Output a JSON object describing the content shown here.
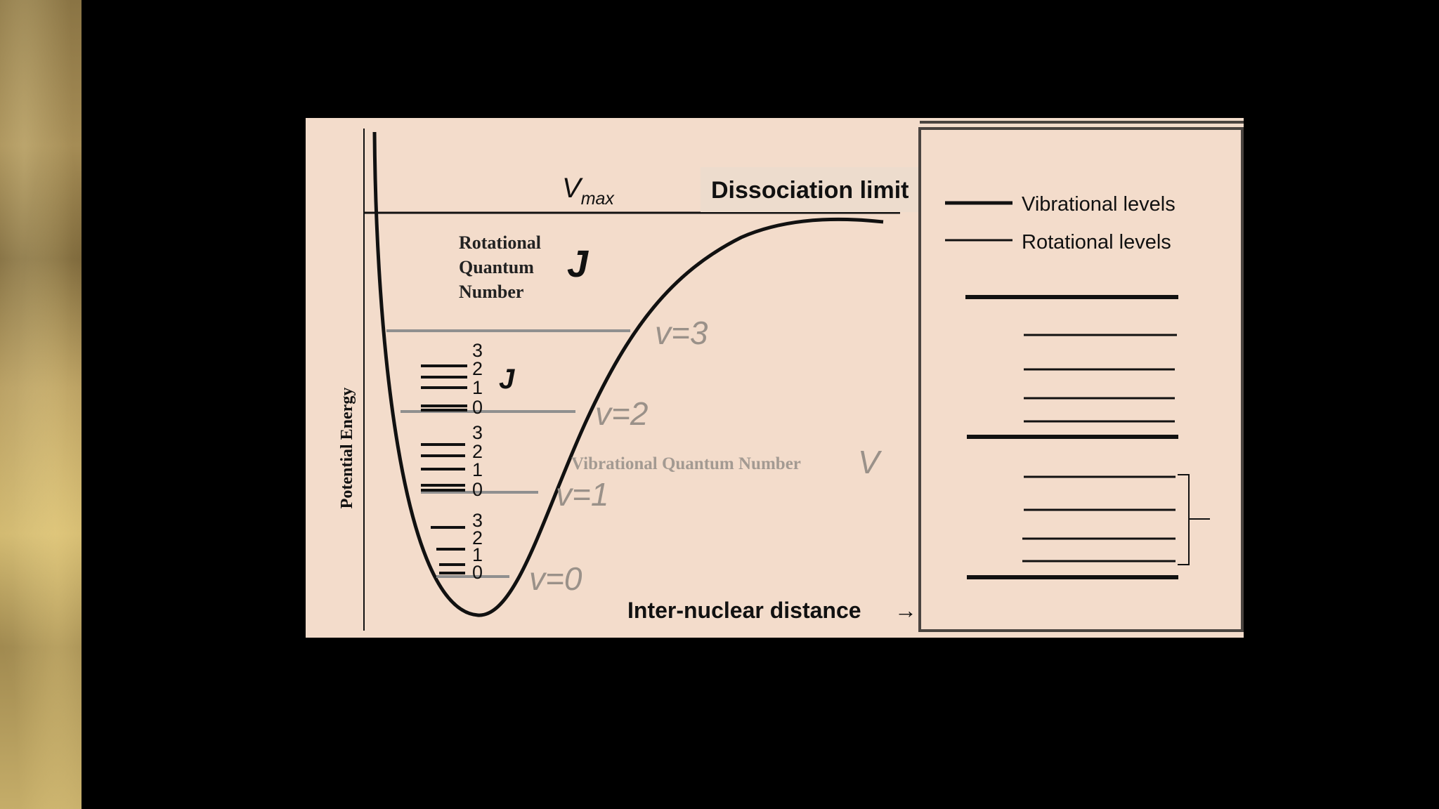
{
  "diagram": {
    "y_axis_label": "Potential Energy",
    "x_axis_label": "Inter-nuclear distance",
    "x_axis_arrow": "→",
    "vmax_symbol": "V",
    "vmax_subscript": "max",
    "dissociation_label": "Dissociation limit",
    "rotational_label_lines": [
      "Rotational",
      "Quantum",
      "Number"
    ],
    "rotational_symbol": "J",
    "inner_j_symbol": "J",
    "vibrational_label": "Vibrational Quantum Number",
    "vibrational_symbol": "V",
    "vibrational_levels": [
      "v=3",
      "v=2",
      "v=1",
      "v=0"
    ],
    "rotational_numbers": [
      "3",
      "2",
      "1",
      "0"
    ]
  },
  "legend": {
    "vibrational_label": "Vibrational levels",
    "rotational_label": "Rotational levels"
  },
  "colors": {
    "panel_background": "#f3dccb",
    "line": "#111111",
    "faded_text": "#9a9189",
    "gold_strip": "#b49a5e"
  }
}
